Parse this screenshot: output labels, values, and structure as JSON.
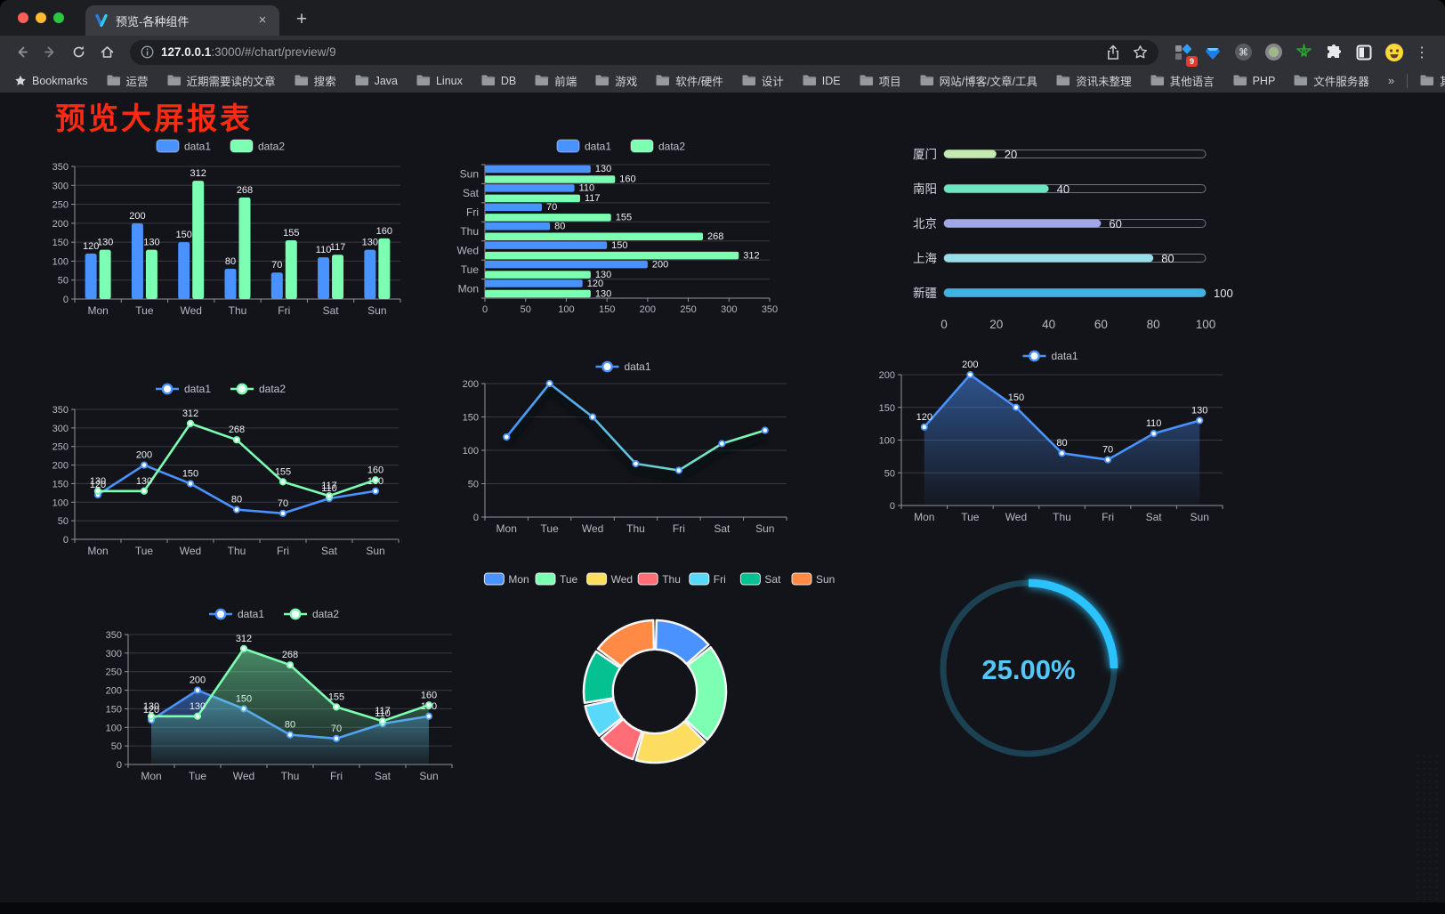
{
  "browser": {
    "window_controls": [
      "close",
      "minimize",
      "maximize"
    ],
    "tab": {
      "title": "预览-各种组件",
      "close_icon": "×",
      "new_tab_icon": "+"
    },
    "address": {
      "host": "127.0.0.1",
      "path": ":3000/#/chart/preview/9",
      "url": "127.0.0.1:3000/#/chart/preview/9"
    },
    "extensions_badge": "9",
    "menu_icon": "⋮",
    "bookmarks_bar": {
      "label": "Bookmarks",
      "folders": [
        "运营",
        "近期需要读的文章",
        "搜索",
        "Java",
        "Linux",
        "DB",
        "前端",
        "游戏",
        "软件/硬件",
        "设计",
        "IDE",
        "项目",
        "网站/博客/文章/工具",
        "资讯未整理",
        "其他语言",
        "PHP",
        "文件服务器"
      ],
      "overflow": "»",
      "other_bookmarks": "其他书签"
    }
  },
  "page": {
    "title": "预览大屏报表",
    "title_color": "#fe2b12",
    "background": "#131419"
  },
  "theme": {
    "palette_dark": [
      "#4992ff",
      "#7cffb2",
      "#fddd60",
      "#ff6e76",
      "#58d9f9",
      "#05c091",
      "#ff8a45"
    ],
    "axis_color": "#8f93a0",
    "grid_color": "#383a43",
    "tick_text": "#b6b8c3",
    "label_text": "#eef0f4"
  },
  "chart_data": [
    {
      "id": "grouped-bar",
      "type": "bar",
      "categories": [
        "Mon",
        "Tue",
        "Wed",
        "Thu",
        "Fri",
        "Sat",
        "Sun"
      ],
      "series": [
        {
          "name": "data1",
          "color": "#4992ff",
          "values": [
            120,
            200,
            150,
            80,
            70,
            110,
            130
          ]
        },
        {
          "name": "data2",
          "color": "#7cffb2",
          "values": [
            130,
            130,
            312,
            268,
            155,
            117,
            160
          ]
        }
      ],
      "ylim": [
        0,
        350
      ],
      "yticks": [
        0,
        50,
        100,
        150,
        200,
        250,
        300,
        350
      ],
      "legend": [
        "data1",
        "data2"
      ],
      "legend_position": "top"
    },
    {
      "id": "grouped-hbar",
      "type": "bar",
      "orientation": "horizontal",
      "categories_top_to_bottom": [
        "Sun",
        "Sat",
        "Fri",
        "Thu",
        "Wed",
        "Tue",
        "Mon"
      ],
      "series": [
        {
          "name": "data1",
          "color": "#4992ff",
          "values": [
            130,
            110,
            70,
            80,
            150,
            200,
            120
          ]
        },
        {
          "name": "data2",
          "color": "#7cffb2",
          "values": [
            160,
            117,
            155,
            268,
            312,
            130,
            130
          ]
        }
      ],
      "xlim": [
        0,
        350
      ],
      "xticks": [
        0,
        50,
        100,
        150,
        200,
        250,
        300,
        350
      ],
      "legend": [
        "data1",
        "data2"
      ],
      "legend_position": "top"
    },
    {
      "id": "progress",
      "type": "bar",
      "subtype": "progress",
      "categories": [
        "厦门",
        "南阳",
        "北京",
        "上海",
        "新疆"
      ],
      "values": [
        20,
        40,
        60,
        80,
        100
      ],
      "colors": [
        "#c4ebad",
        "#6be6c1",
        "#a0a7e6",
        "#96dee8",
        "#3fb1e3"
      ],
      "xlim": [
        0,
        100
      ],
      "xticks": [
        0,
        20,
        40,
        60,
        80,
        100
      ]
    },
    {
      "id": "line-two-series",
      "type": "line",
      "categories": [
        "Mon",
        "Tue",
        "Wed",
        "Thu",
        "Fri",
        "Sat",
        "Sun"
      ],
      "series": [
        {
          "name": "data1",
          "color": "#4992ff",
          "values": [
            120,
            200,
            150,
            80,
            70,
            110,
            130
          ],
          "labels": true
        },
        {
          "name": "data2",
          "color": "#7cffb2",
          "values": [
            130,
            130,
            312,
            268,
            155,
            117,
            160
          ],
          "labels": true
        }
      ],
      "ylim": [
        0,
        350
      ],
      "yticks": [
        0,
        50,
        100,
        150,
        200,
        250,
        300,
        350
      ],
      "legend": [
        "data1",
        "data2"
      ],
      "legend_position": "top"
    },
    {
      "id": "line-gradient",
      "type": "line",
      "categories": [
        "Mon",
        "Tue",
        "Wed",
        "Thu",
        "Fri",
        "Sat",
        "Sun"
      ],
      "series": [
        {
          "name": "data1",
          "color": "#4992ff",
          "gradient": [
            "#4992ff",
            "#7cffb2"
          ],
          "values": [
            120,
            200,
            150,
            80,
            70,
            110,
            130
          ],
          "labels": false
        }
      ],
      "ylim": [
        0,
        200
      ],
      "yticks": [
        0,
        50,
        100,
        150,
        200
      ],
      "legend": [
        "data1"
      ],
      "legend_position": "top"
    },
    {
      "id": "area-single",
      "type": "area",
      "categories": [
        "Mon",
        "Tue",
        "Wed",
        "Thu",
        "Fri",
        "Sat",
        "Sun"
      ],
      "series": [
        {
          "name": "data1",
          "color": "#4992ff",
          "area": true,
          "values": [
            120,
            200,
            150,
            80,
            70,
            110,
            130
          ],
          "labels": true
        }
      ],
      "ylim": [
        0,
        200
      ],
      "yticks": [
        0,
        50,
        100,
        150,
        200
      ],
      "legend": [
        "data1"
      ],
      "legend_position": "top"
    },
    {
      "id": "area-two-series",
      "type": "area",
      "categories": [
        "Mon",
        "Tue",
        "Wed",
        "Thu",
        "Fri",
        "Sat",
        "Sun"
      ],
      "series": [
        {
          "name": "data1",
          "color": "#4992ff",
          "area": true,
          "values": [
            120,
            200,
            150,
            80,
            70,
            110,
            130
          ],
          "labels": true
        },
        {
          "name": "data2",
          "color": "#7cffb2",
          "area": true,
          "values": [
            130,
            130,
            312,
            268,
            155,
            117,
            160
          ],
          "labels": true
        }
      ],
      "ylim": [
        0,
        350
      ],
      "yticks": [
        0,
        50,
        100,
        150,
        200,
        250,
        300,
        350
      ],
      "legend": [
        "data1",
        "data2"
      ],
      "legend_position": "top"
    },
    {
      "id": "donut",
      "type": "pie",
      "categories": [
        "Mon",
        "Tue",
        "Wed",
        "Thu",
        "Fri",
        "Sat",
        "Sun"
      ],
      "values": [
        120,
        200,
        150,
        80,
        70,
        110,
        130
      ],
      "colors": [
        "#4992ff",
        "#7cffb2",
        "#fddd60",
        "#ff6e76",
        "#58d9f9",
        "#05c091",
        "#ff8a45"
      ],
      "inner_radius_ratio": 0.59,
      "border_color": "#f4f5f7",
      "legend": [
        "Mon",
        "Tue",
        "Wed",
        "Thu",
        "Fri",
        "Sat",
        "Sun"
      ],
      "legend_position": "top"
    },
    {
      "id": "gauge",
      "type": "gauge",
      "value": 25,
      "max": 100,
      "label": "25.00%",
      "arc_color": "#2bc3ff",
      "track_color": "#1b4152",
      "text_color": "#55c7f7"
    }
  ]
}
